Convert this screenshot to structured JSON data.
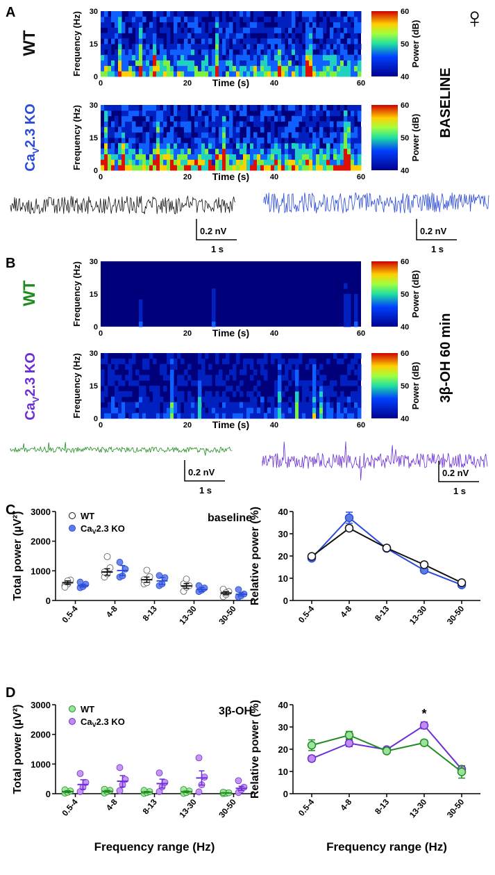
{
  "colors": {
    "wt_baseline": "#111111",
    "ko_baseline": "#2b4bd8",
    "wt_drug": "#1f8c1f",
    "ko_drug": "#6a2fd6",
    "ko_marker_baseline": "#5b7be6",
    "wt_marker_drug": "#9be39b",
    "ko_marker_drug": "#c48af0"
  },
  "female_symbol": "♀",
  "panelA": {
    "letter": "A",
    "condition_label": "BASELINE",
    "rows": [
      {
        "group": "WT",
        "color_key": "wt_baseline"
      },
      {
        "group": "Cav2.3 KO",
        "ko_main": "Ca",
        "ko_sub": "V",
        "ko_rest": "2.3 KO",
        "color_key": "ko_baseline"
      }
    ],
    "trace_scale": {
      "amplitude": "0.2 nV",
      "time": "1 s"
    }
  },
  "panelB": {
    "letter": "B",
    "condition_label": "3β-OH 60 min",
    "rows": [
      {
        "group": "WT",
        "color_key": "wt_drug"
      },
      {
        "group": "Cav2.3 KO",
        "ko_main": "Ca",
        "ko_sub": "V",
        "ko_rest": "2.3 KO",
        "color_key": "ko_drug"
      }
    ],
    "trace_scale": {
      "amplitude": "0.2 nV",
      "time": "1 s"
    }
  },
  "spectrogram_axes": {
    "ylabel": "Frequency (Hz)",
    "xlabel": "Time (s)",
    "yticks": [
      "0",
      "15",
      "30"
    ],
    "xticks": [
      "0",
      "20",
      "40",
      "60"
    ],
    "colorbar_label": "Power (dB)",
    "colorbar_ticks": [
      "40",
      "50",
      "60"
    ]
  },
  "panelC_letter": "C",
  "panelD_letter": "D",
  "chart_data": [
    {
      "id": "C-left",
      "type": "scatter",
      "title": "baseline",
      "xlabel": "",
      "ylabel": "Total power (µV²)",
      "ylim": [
        0,
        3000
      ],
      "yticks": [
        "0",
        "1000",
        "2000",
        "3000"
      ],
      "categories": [
        "0.5-4",
        "4-8",
        "8-13",
        "13-30",
        "30-50"
      ],
      "legend": [
        {
          "name": "WT",
          "main": "WT",
          "sub": "",
          "rest": ""
        },
        {
          "name": "Cav2.3 KO",
          "main": "Ca",
          "sub": "V",
          "rest": "2.3 KO"
        }
      ],
      "series": [
        {
          "name": "WT",
          "mean": [
            600,
            960,
            700,
            490,
            250
          ],
          "sem": [
            60,
            110,
            90,
            80,
            50
          ],
          "points": [
            [
              500,
              560,
              690,
              450,
              660
            ],
            [
              790,
              900,
              1100,
              960,
              1480
            ],
            [
              560,
              600,
              800,
              700,
              1020
            ],
            [
              310,
              450,
              500,
              560,
              720
            ],
            [
              130,
              200,
              300,
              380,
              260
            ]
          ]
        },
        {
          "name": "Cav2.3 KO",
          "mean": [
            500,
            1010,
            660,
            370,
            210
          ],
          "sem": [
            50,
            170,
            120,
            70,
            55
          ],
          "points": [
            [
              430,
              470,
              550,
              620
            ],
            [
              790,
              830,
              1060,
              1290
            ],
            [
              500,
              560,
              770,
              840
            ],
            [
              300,
              350,
              420,
              500
            ],
            [
              120,
              160,
              220,
              370
            ]
          ]
        }
      ]
    },
    {
      "id": "C-right",
      "type": "line",
      "title": "",
      "xlabel": "",
      "ylabel": "Relative power (%)",
      "ylim": [
        0,
        40
      ],
      "yticks": [
        "0",
        "10",
        "20",
        "30",
        "40"
      ],
      "categories": [
        "0.5-4",
        "4-8",
        "8-13",
        "13-30",
        "30-50"
      ],
      "series": [
        {
          "name": "WT",
          "values": [
            19.8,
            32.5,
            23.6,
            16.1,
            8.0
          ],
          "sem": [
            1.0,
            1.2,
            0.5,
            0.6,
            0.9
          ]
        },
        {
          "name": "Cav2.3 KO",
          "values": [
            19.0,
            37.2,
            23.4,
            13.6,
            7.0
          ],
          "sem": [
            0.6,
            2.5,
            0.5,
            0.8,
            0.7
          ]
        }
      ]
    },
    {
      "id": "D-left",
      "type": "scatter",
      "title": "3β-OH",
      "xlabel": "Frequency range (Hz)",
      "ylabel": "Total power (µV²)",
      "ylim": [
        0,
        3000
      ],
      "yticks": [
        "0",
        "1000",
        "2000",
        "3000"
      ],
      "categories": [
        "0.5-4",
        "4-8",
        "8-13",
        "13-30",
        "30-50"
      ],
      "legend": [
        {
          "name": "WT",
          "main": "WT",
          "sub": "",
          "rest": ""
        },
        {
          "name": "Cav2.3 KO",
          "main": "Ca",
          "sub": "V",
          "rest": "2.3 KO"
        }
      ],
      "series": [
        {
          "name": "WT",
          "mean": [
            70,
            80,
            55,
            65,
            25
          ],
          "sem": [
            30,
            30,
            20,
            25,
            10
          ],
          "points": [
            [
              20,
              50,
              90,
              130
            ],
            [
              20,
              70,
              110,
              150
            ],
            [
              10,
              40,
              70,
              110
            ],
            [
              10,
              40,
              90,
              140
            ],
            [
              5,
              15,
              30,
              50
            ]
          ]
        },
        {
          "name": "Cav2.3 KO",
          "mean": [
            310,
            420,
            340,
            530,
            180
          ],
          "sem": [
            160,
            190,
            150,
            240,
            70
          ],
          "points": [
            [
              70,
              220,
              380,
              680
            ],
            [
              100,
              300,
              480,
              880
            ],
            [
              70,
              230,
              380,
              700
            ],
            [
              60,
              300,
              560,
              1210
            ],
            [
              40,
              130,
              220,
              440
            ]
          ]
        }
      ]
    },
    {
      "id": "D-right",
      "type": "line",
      "title": "",
      "xlabel": "Frequency range (Hz)",
      "ylabel": "Relative power (%)",
      "ylim": [
        0,
        40
      ],
      "yticks": [
        "0",
        "10",
        "20",
        "30",
        "40"
      ],
      "categories": [
        "0.5-4",
        "4-8",
        "8-13",
        "13-30",
        "30-50"
      ],
      "annotation": {
        "text": "*",
        "category": "13-30"
      },
      "series": [
        {
          "name": "WT",
          "values": [
            21.8,
            26.3,
            19.2,
            22.9,
            9.8
          ],
          "sem": [
            2.4,
            1.7,
            1.0,
            1.2,
            2.8
          ]
        },
        {
          "name": "Cav2.3 KO",
          "values": [
            15.8,
            22.7,
            19.8,
            30.7,
            11.0
          ],
          "sem": [
            1.2,
            1.5,
            1.0,
            1.5,
            1.5
          ]
        }
      ]
    }
  ]
}
